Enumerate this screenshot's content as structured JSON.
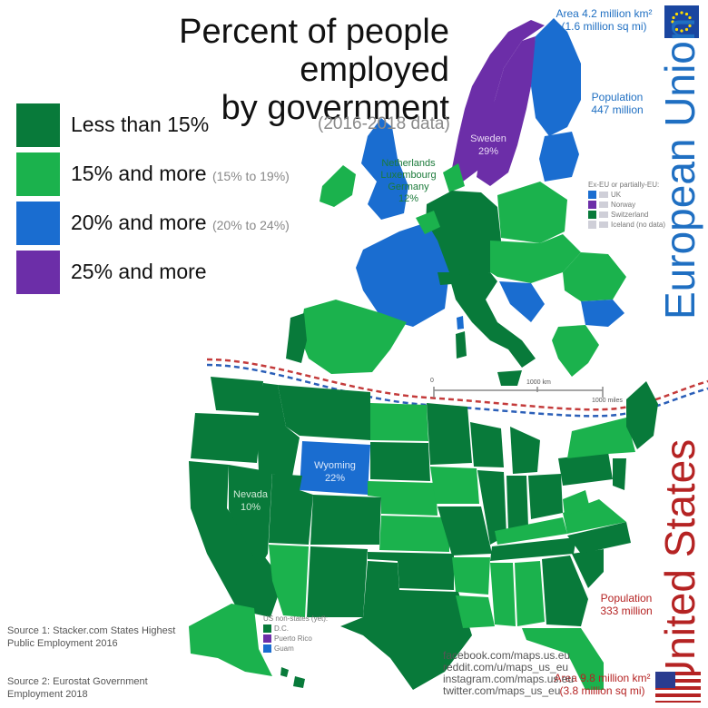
{
  "title": {
    "line1": "Percent of people employed",
    "line2": "by government"
  },
  "data_note": "(2016-2018 data)",
  "colors": {
    "lt15": "#087a3a",
    "p15": "#1bb24d",
    "p20": "#1a6dd0",
    "p25": "#6c2ea8",
    "eu_blue": "#1f6fc2",
    "us_red": "#b52323"
  },
  "legend": [
    {
      "label": "Less than 15%",
      "sub": "",
      "color": "#087a3a"
    },
    {
      "label": "15% and more",
      "sub": "(15% to 19%)",
      "color": "#1bb24d"
    },
    {
      "label": "20% and more",
      "sub": "(20% to 24%)",
      "color": "#1a6dd0"
    },
    {
      "label": "25% and more",
      "sub": "",
      "color": "#6c2ea8"
    }
  ],
  "eu": {
    "area": "Area 4.2 million km²",
    "area_mi": "(1.6 million sq mi)",
    "population_label": "Population",
    "population": "447 million",
    "name": "European Union",
    "sweden": {
      "name": "Sweden",
      "value": "29%"
    },
    "nlg": {
      "l1": "Netherlands",
      "l2": "Luxembourg",
      "l3": "Germany",
      "value": "12%"
    },
    "ex_title": "Ex-EU or partially-EU:",
    "ex": [
      {
        "name": "UK",
        "color": "#1a6dd0"
      },
      {
        "name": "Norway",
        "color": "#6c2ea8"
      },
      {
        "name": "Switzerland",
        "color": "#087a3a"
      },
      {
        "name": "Iceland (no data)",
        "color": "#cfcfd8"
      }
    ],
    "scale_0": "0",
    "scale_km": "1000 km",
    "scale_mi": "1000 miles"
  },
  "us": {
    "name": "United States",
    "population_label": "Population",
    "population": "333 million",
    "area": "Area 9.8 million km²",
    "area_mi": "(3.8 million sq mi)",
    "wyoming": {
      "name": "Wyoming",
      "value": "22%"
    },
    "nevada": {
      "name": "Nevada",
      "value": "10%"
    },
    "terr_title": "US non-states (yet):",
    "terr": [
      {
        "name": "D.C.",
        "color": "#087a3a"
      },
      {
        "name": "Puerto Rico",
        "color": "#6c2ea8"
      },
      {
        "name": "Guam",
        "color": "#1a6dd0"
      }
    ]
  },
  "sources": {
    "s1a": "Source 1: Stacker.com States Highest",
    "s1b": "Public Employment 2016",
    "s2a": "Source 2: Eurostat Government",
    "s2b": "Employment 2018"
  },
  "social": [
    "facebook.com/maps.us.eu",
    "reddit.com/u/maps_us_eu",
    "instagram.com/maps.us.eu",
    "twitter.com/maps_us_eu"
  ]
}
